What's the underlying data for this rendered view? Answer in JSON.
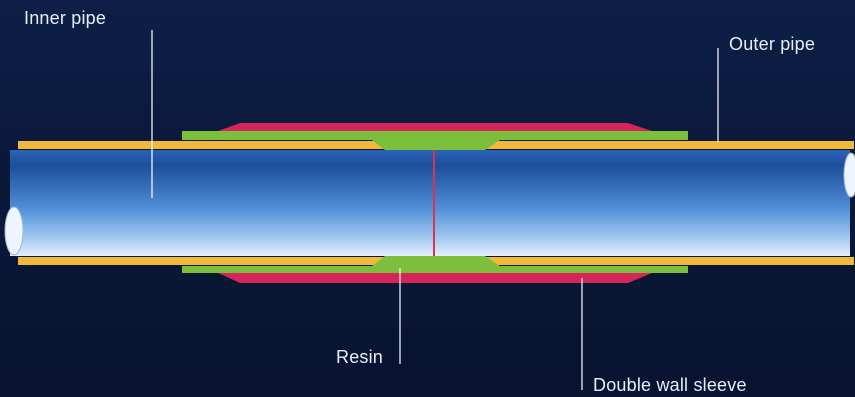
{
  "labels": {
    "inner_pipe": "Inner pipe",
    "outer_pipe": "Outer pipe",
    "resin": "Resin",
    "double_wall_sleeve": "Double wall sleeve"
  },
  "colors": {
    "background": "#0b1a3c",
    "inner_pipe_light": "#dbe9fb",
    "inner_pipe_dark": "#1d4e9c",
    "outer_pipe": "#f2b83a",
    "resin": "#7bbf3c",
    "sleeve": "#d6255a",
    "joint_line": "#e0324a",
    "leader_line": "#ffffff"
  }
}
